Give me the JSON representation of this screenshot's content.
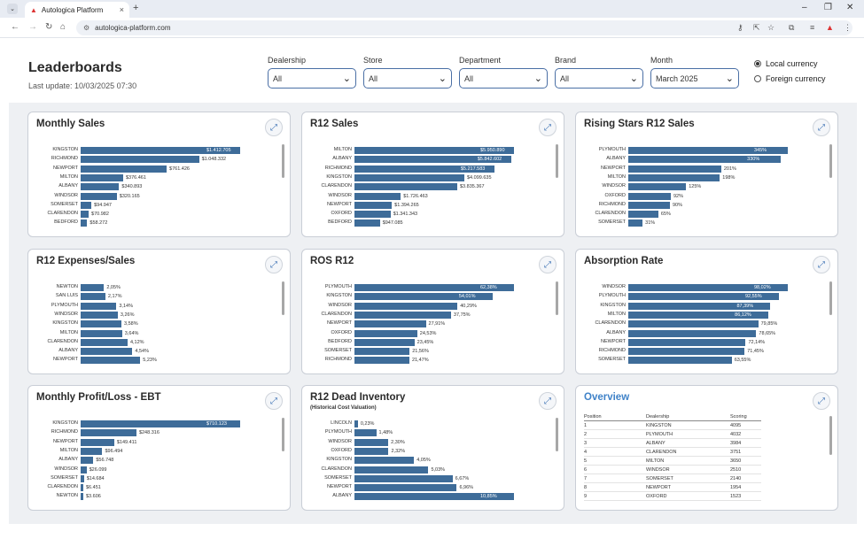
{
  "browser": {
    "tab_title": "Autologica Platform",
    "url": "autologica-platform.com"
  },
  "header": {
    "title": "Leaderboards",
    "last_update": "Last update: 10/03/2025 07:30"
  },
  "filters": [
    {
      "label": "Dealership",
      "value": "All"
    },
    {
      "label": "Store",
      "value": "All"
    },
    {
      "label": "Department",
      "value": "All"
    },
    {
      "label": "Brand",
      "value": "All"
    },
    {
      "label": "Month",
      "value": "March 2025"
    }
  ],
  "currency": {
    "local": "Local currency",
    "foreign": "Foreign currency",
    "selected": "local"
  },
  "cards": [
    {
      "title": "Monthly Sales",
      "subtitle": "",
      "rows": [
        {
          "label": "KINGSTON",
          "text": "$1.412.705",
          "value": 1412705
        },
        {
          "label": "RICHMOND",
          "text": "$1.048.332",
          "value": 1048332
        },
        {
          "label": "NEWPORT",
          "text": "$761.426",
          "value": 761426
        },
        {
          "label": "MILTON",
          "text": "$376.461",
          "value": 376461
        },
        {
          "label": "ALBANY",
          "text": "$340.893",
          "value": 340893
        },
        {
          "label": "WINDSOR",
          "text": "$320.165",
          "value": 320165
        },
        {
          "label": "SOMERSET",
          "text": "$94.947",
          "value": 94947
        },
        {
          "label": "CLARENDON",
          "text": "$70.982",
          "value": 70982
        },
        {
          "label": "BEDFORD",
          "text": "$58.272",
          "value": 58272
        }
      ],
      "max": 1412705
    },
    {
      "title": "R12 Sales",
      "subtitle": "",
      "rows": [
        {
          "label": "MILTON",
          "text": "$5.950.890",
          "value": 5950890
        },
        {
          "label": "ALBANY",
          "text": "$5.842.602",
          "value": 5842602
        },
        {
          "label": "RICHMOND",
          "text": "$5.217.583",
          "value": 5217583
        },
        {
          "label": "KINGSTON",
          "text": "$4.099.635",
          "value": 4099635
        },
        {
          "label": "CLARENDON",
          "text": "$3.835.367",
          "value": 3835367
        },
        {
          "label": "WINDSOR",
          "text": "$1.726.463",
          "value": 1726463
        },
        {
          "label": "NEWPORT",
          "text": "$1.394.265",
          "value": 1394265
        },
        {
          "label": "OXFORD",
          "text": "$1.341.343",
          "value": 1341343
        },
        {
          "label": "BEDFORD",
          "text": "$947.085",
          "value": 947085
        }
      ],
      "max": 5950890
    },
    {
      "title": "Rising Stars R12 Sales",
      "subtitle": "",
      "rows": [
        {
          "label": "PLYMOUTH",
          "text": "345%",
          "value": 345
        },
        {
          "label": "ALBANY",
          "text": "330%",
          "value": 330
        },
        {
          "label": "NEWPORT",
          "text": "201%",
          "value": 201
        },
        {
          "label": "MILTON",
          "text": "198%",
          "value": 198
        },
        {
          "label": "WINDSOR",
          "text": "125%",
          "value": 125
        },
        {
          "label": "OXFORD",
          "text": "92%",
          "value": 92
        },
        {
          "label": "RICHMOND",
          "text": "90%",
          "value": 90
        },
        {
          "label": "CLARENDON",
          "text": "65%",
          "value": 65
        },
        {
          "label": "SOMERSET",
          "text": "31%",
          "value": 31
        }
      ],
      "max": 345
    },
    {
      "title": "R12 Expenses/Sales",
      "subtitle": "",
      "rows": [
        {
          "label": "NEWTON",
          "text": "2,05%",
          "value": 2.05
        },
        {
          "label": "SAN LUIS",
          "text": "2,17%",
          "value": 2.17
        },
        {
          "label": "PLYMOUTH",
          "text": "3,14%",
          "value": 3.14
        },
        {
          "label": "WINDSOR",
          "text": "3,26%",
          "value": 3.26
        },
        {
          "label": "KINGSTON",
          "text": "3,58%",
          "value": 3.58
        },
        {
          "label": "MILTON",
          "text": "3,64%",
          "value": 3.64
        },
        {
          "label": "CLARENDON",
          "text": "4,12%",
          "value": 4.12
        },
        {
          "label": "ALBANY",
          "text": "4,54%",
          "value": 4.54
        },
        {
          "label": "NEWPORT",
          "text": "5,23%",
          "value": 5.23
        }
      ],
      "max": 14
    },
    {
      "title": "ROS R12",
      "subtitle": "",
      "rows": [
        {
          "label": "PLYMOUTH",
          "text": "62,38%",
          "value": 62.38
        },
        {
          "label": "KINGSTON",
          "text": "54,01%",
          "value": 54.01
        },
        {
          "label": "WINDSOR",
          "text": "40,29%",
          "value": 40.29
        },
        {
          "label": "CLARENDON",
          "text": "37,75%",
          "value": 37.75
        },
        {
          "label": "NEWPORT",
          "text": "27,91%",
          "value": 27.91
        },
        {
          "label": "OXFORD",
          "text": "24,53%",
          "value": 24.53
        },
        {
          "label": "BEDFORD",
          "text": "23,45%",
          "value": 23.45
        },
        {
          "label": "SOMERSET",
          "text": "21,56%",
          "value": 21.56
        },
        {
          "label": "RICHMOND",
          "text": "21,47%",
          "value": 21.47
        }
      ],
      "max": 62.38
    },
    {
      "title": "Absorption Rate",
      "subtitle": "",
      "rows": [
        {
          "label": "WINDSOR",
          "text": "98,02%",
          "value": 98.02
        },
        {
          "label": "PLYMOUTH",
          "text": "92,55%",
          "value": 92.55
        },
        {
          "label": "KINGSTON",
          "text": "87,39%",
          "value": 87.39
        },
        {
          "label": "MILTON",
          "text": "86,12%",
          "value": 86.12
        },
        {
          "label": "CLARENDON",
          "text": "79,85%",
          "value": 79.85
        },
        {
          "label": "ALBANY",
          "text": "78,65%",
          "value": 78.65
        },
        {
          "label": "NEWPORT",
          "text": "72,14%",
          "value": 72.14
        },
        {
          "label": "RICHMOND",
          "text": "71,45%",
          "value": 71.45
        },
        {
          "label": "SOMERSET",
          "text": "63,55%",
          "value": 63.55
        }
      ],
      "max": 98.02
    },
    {
      "title": "Monthly Profit/Loss - EBT",
      "subtitle": "",
      "rows": [
        {
          "label": "KINGSTON",
          "text": "$710.123",
          "value": 710123
        },
        {
          "label": "RICHMOND",
          "text": "$248.316",
          "value": 248316
        },
        {
          "label": "NEWPORT",
          "text": "$149.411",
          "value": 149411
        },
        {
          "label": "MILTON",
          "text": "$96.494",
          "value": 96494
        },
        {
          "label": "ALBANY",
          "text": "$56.748",
          "value": 56748
        },
        {
          "label": "WINDSOR",
          "text": "$26.099",
          "value": 26099
        },
        {
          "label": "SOMERSET",
          "text": "$14.684",
          "value": 14684
        },
        {
          "label": "CLARENDON",
          "text": "$6.451",
          "value": 6451
        },
        {
          "label": "NEWTON",
          "text": "$3.606",
          "value": 3606
        }
      ],
      "max": 710123
    },
    {
      "title": "R12 Dead Inventory",
      "subtitle": "(Historical Cost Valuation)",
      "rows": [
        {
          "label": "LINCOLN",
          "text": "0,23%",
          "value": 0.23
        },
        {
          "label": "PLYMOUTH",
          "text": "1,48%",
          "value": 1.48
        },
        {
          "label": "WINDSOR",
          "text": "2,30%",
          "value": 2.3
        },
        {
          "label": "OXFORD",
          "text": "2,32%",
          "value": 2.32
        },
        {
          "label": "KINGSTON",
          "text": "4,05%",
          "value": 4.05
        },
        {
          "label": "CLARENDON",
          "text": "5,03%",
          "value": 5.03
        },
        {
          "label": "SOMERSET",
          "text": "6,67%",
          "value": 6.67
        },
        {
          "label": "NEWPORT",
          "text": "6,96%",
          "value": 6.96
        },
        {
          "label": "ALBANY",
          "text": "10,85%",
          "value": 10.85
        }
      ],
      "max": 10.85
    }
  ],
  "overview": {
    "title": "Overview",
    "headers": [
      "Position",
      "Dealership",
      "Scoring"
    ],
    "rows": [
      [
        "1",
        "KINGSTON",
        "4095"
      ],
      [
        "2",
        "PLYMOUTH",
        "4032"
      ],
      [
        "3",
        "ALBANY",
        "3984"
      ],
      [
        "4",
        "CLARENDON",
        "3751"
      ],
      [
        "5",
        "MILTON",
        "3650"
      ],
      [
        "6",
        "WINDSOR",
        "2510"
      ],
      [
        "7",
        "SOMERSET",
        "2140"
      ],
      [
        "8",
        "NEWPORT",
        "1954"
      ],
      [
        "9",
        "OXFORD",
        "1523"
      ]
    ]
  },
  "colors": {
    "bar": "#3e6c99",
    "accent": "#3f82c8"
  }
}
